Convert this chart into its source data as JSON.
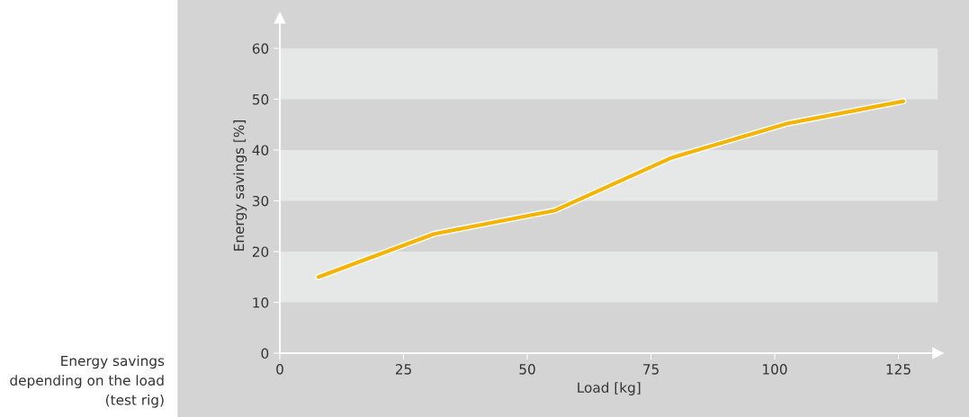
{
  "chart_data": {
    "type": "line",
    "xlabel": "Load [kg]",
    "ylabel": "Energy savings [%]",
    "x": [
      7.8,
      31.2,
      55.6,
      79.2,
      102.5,
      126
    ],
    "series": [
      {
        "color": "#f5b400",
        "values": [
          15.0,
          23.5,
          28.1,
          38.5,
          45.2,
          49.6
        ]
      }
    ],
    "xlim": [
      0,
      133
    ],
    "ylim": [
      0,
      66
    ],
    "xticks": [
      0,
      25,
      50,
      75,
      100,
      125
    ],
    "yticks": [
      0,
      10,
      20,
      30,
      40,
      50,
      60
    ],
    "bands": [
      {
        "axis": "y",
        "from": 10,
        "to": 20,
        "color": "#e6e7e7"
      },
      {
        "axis": "y",
        "from": 30,
        "to": 40,
        "color": "#e6e7e7"
      },
      {
        "axis": "y",
        "from": 50,
        "to": 60,
        "color": "#e6e7e7"
      }
    ],
    "marker": "none",
    "line_style": "solid",
    "annotations": [
      "Energy savings\ndepending on the load\n(test rig)"
    ]
  }
}
